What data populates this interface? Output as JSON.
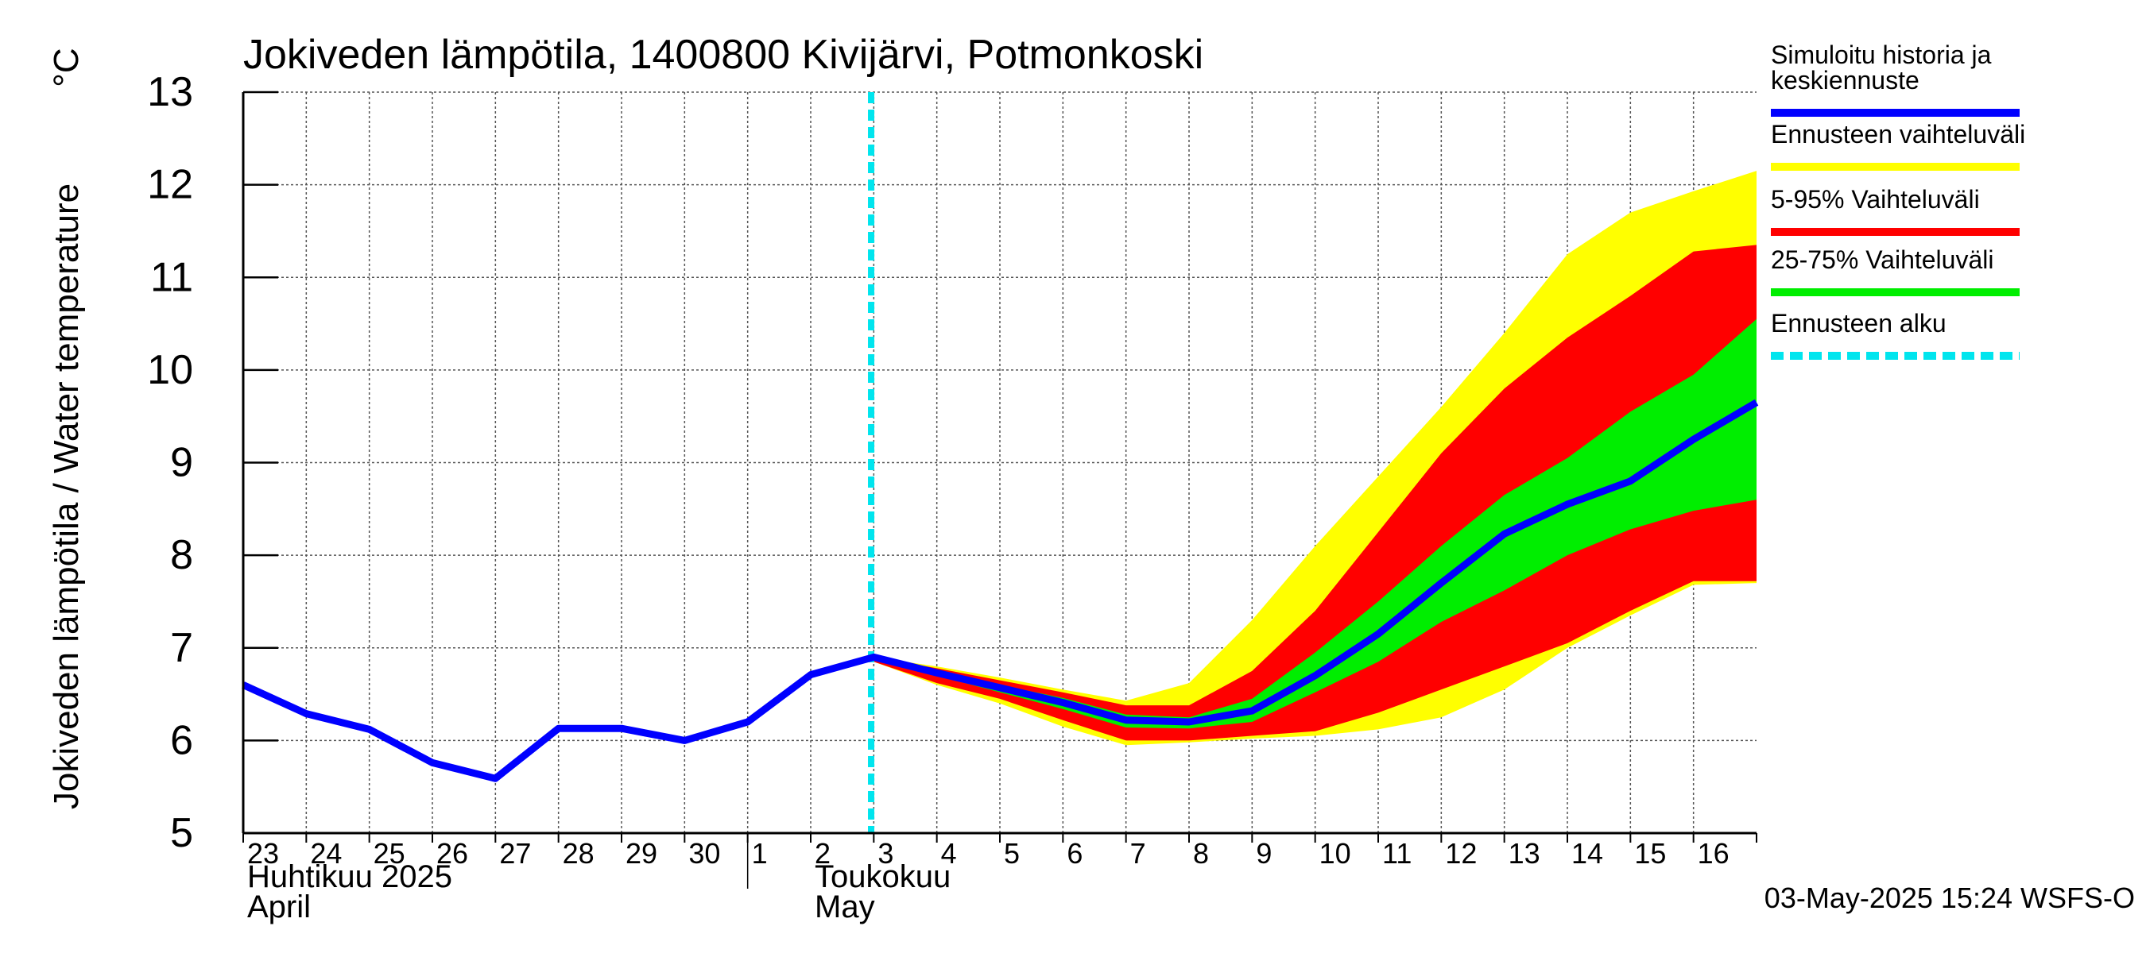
{
  "chart_data": {
    "type": "area",
    "title": "Jokiveden lämpötila, 1400800 Kivijärvi, Potmonkoski",
    "ylabel": "Jokiveden lämpötila / Water temperature",
    "yunit": "°C",
    "ylim": [
      5,
      13
    ],
    "yticks": [
      5,
      6,
      7,
      8,
      9,
      10,
      11,
      12,
      13
    ],
    "grid": true,
    "legend_position": "right",
    "x_days": [
      "23",
      "24",
      "25",
      "26",
      "27",
      "28",
      "29",
      "30",
      "1",
      "2",
      "3",
      "4",
      "5",
      "6",
      "7",
      "8",
      "9",
      "10",
      "11",
      "12",
      "13",
      "14",
      "15",
      "16"
    ],
    "x_start": "2025-04-23",
    "x_end": "2025-05-17",
    "month_labels": [
      {
        "date": "2025-04-23",
        "line1": "Huhtikuu  2025",
        "line2": "April"
      },
      {
        "date": "2025-05-02",
        "line1": "Toukokuu",
        "line2": "May"
      }
    ],
    "forecast_start": "2025-05-02T23:00",
    "history": {
      "name": "Simuloitu historia ja keskiennuste",
      "color": "#0000ff",
      "x": [
        "2025-04-23",
        "2025-04-24",
        "2025-04-25",
        "2025-04-26",
        "2025-04-27",
        "2025-04-28",
        "2025-04-29",
        "2025-04-30",
        "2025-05-01",
        "2025-05-02",
        "2025-05-03",
        "2025-05-04",
        "2025-05-05",
        "2025-05-06",
        "2025-05-07",
        "2025-05-08",
        "2025-05-09",
        "2025-05-10",
        "2025-05-11",
        "2025-05-12",
        "2025-05-13",
        "2025-05-14",
        "2025-05-15",
        "2025-05-16",
        "2025-05-17"
      ],
      "y": [
        6.6,
        6.29,
        6.12,
        5.76,
        5.59,
        6.13,
        6.13,
        6.0,
        6.2,
        6.71,
        6.9,
        6.73,
        6.57,
        6.41,
        6.22,
        6.2,
        6.32,
        6.7,
        7.15,
        7.7,
        8.23,
        8.55,
        8.8,
        9.25,
        9.65
      ]
    },
    "bands": [
      {
        "name": "Ennusteen vaihteluväli",
        "color": "#ffff00",
        "x": [
          "2025-05-03",
          "2025-05-04",
          "2025-05-05",
          "2025-05-06",
          "2025-05-07",
          "2025-05-08",
          "2025-05-09",
          "2025-05-10",
          "2025-05-11",
          "2025-05-12",
          "2025-05-13",
          "2025-05-14",
          "2025-05-15",
          "2025-05-16",
          "2025-05-17"
        ],
        "upper": [
          6.9,
          6.8,
          6.68,
          6.55,
          6.43,
          6.62,
          7.3,
          8.1,
          8.85,
          9.6,
          10.4,
          11.25,
          11.7,
          11.93,
          12.15
        ],
        "lower": [
          6.85,
          6.6,
          6.4,
          6.15,
          5.95,
          5.98,
          6.02,
          6.05,
          6.12,
          6.25,
          6.55,
          7.0,
          7.35,
          7.68,
          7.7
        ]
      },
      {
        "name": "5-95% Vaihteluväli",
        "color": "#ff0000",
        "x": [
          "2025-05-03",
          "2025-05-04",
          "2025-05-05",
          "2025-05-06",
          "2025-05-07",
          "2025-05-08",
          "2025-05-09",
          "2025-05-10",
          "2025-05-11",
          "2025-05-12",
          "2025-05-13",
          "2025-05-14",
          "2025-05-15",
          "2025-05-16",
          "2025-05-17"
        ],
        "upper": [
          6.9,
          6.78,
          6.65,
          6.52,
          6.38,
          6.38,
          6.75,
          7.4,
          8.25,
          9.1,
          9.8,
          10.35,
          10.8,
          11.28,
          11.35
        ],
        "lower": [
          6.85,
          6.62,
          6.45,
          6.22,
          6.0,
          6.0,
          6.05,
          6.1,
          6.3,
          6.55,
          6.8,
          7.05,
          7.4,
          7.72,
          7.72
        ]
      },
      {
        "name": "25-75% Vaihteluväli",
        "color": "#00ee00",
        "x": [
          "2025-05-03",
          "2025-05-04",
          "2025-05-05",
          "2025-05-06",
          "2025-05-07",
          "2025-05-08",
          "2025-05-09",
          "2025-05-10",
          "2025-05-11",
          "2025-05-12",
          "2025-05-13",
          "2025-05-14",
          "2025-05-15",
          "2025-05-16",
          "2025-05-17"
        ],
        "upper": [
          6.9,
          6.75,
          6.6,
          6.46,
          6.28,
          6.25,
          6.45,
          6.95,
          7.5,
          8.1,
          8.65,
          9.05,
          9.55,
          9.95,
          10.55
        ],
        "lower": [
          6.88,
          6.7,
          6.52,
          6.34,
          6.14,
          6.13,
          6.2,
          6.52,
          6.85,
          7.28,
          7.62,
          8.0,
          8.28,
          8.48,
          8.6
        ]
      }
    ],
    "legend": [
      {
        "label_lines": [
          "Simuloitu historia ja",
          "keskiennuste"
        ],
        "color": "#0000ff",
        "style": "solid"
      },
      {
        "label_lines": [
          "Ennusteen vaihteluväli"
        ],
        "color": "#ffff00",
        "style": "solid"
      },
      {
        "label_lines": [
          "5-95% Vaihteluväli"
        ],
        "color": "#ff0000",
        "style": "solid"
      },
      {
        "label_lines": [
          "25-75% Vaihteluväli"
        ],
        "color": "#00ee00",
        "style": "solid"
      },
      {
        "label_lines": [
          "Ennusteen alku"
        ],
        "color": "#00e5ee",
        "style": "dashed"
      }
    ],
    "footer": "03-May-2025 15:24 WSFS-O"
  }
}
